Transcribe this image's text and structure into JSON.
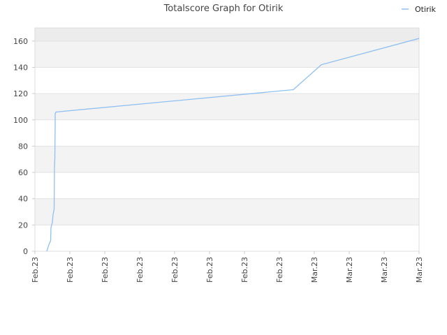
{
  "chart_data": {
    "type": "line",
    "title": "Totalscore Graph for Otirik",
    "xlabel": "",
    "ylabel": "",
    "ylim": [
      0,
      170
    ],
    "yticks": [
      0,
      20,
      40,
      60,
      80,
      100,
      120,
      140,
      160
    ],
    "xticks": [
      "Feb.23",
      "Feb.23",
      "Feb.23",
      "Feb.23",
      "Feb.23",
      "Feb.23",
      "Feb.23",
      "Feb.23",
      "Mar.23",
      "Mar.23",
      "Mar.23",
      "Mar.23"
    ],
    "grid": true,
    "legend_position": "top-right",
    "series": [
      {
        "name": "Otirik",
        "color": "#90c0f0",
        "x": [
          0.34,
          0.4,
          0.45,
          0.46,
          0.5,
          0.52,
          0.55,
          0.56,
          0.57,
          0.58,
          0.58,
          0.58,
          0.59,
          0.6,
          7.4,
          8.2,
          11.0
        ],
        "y": [
          0,
          5,
          8,
          18,
          22,
          28,
          32,
          65,
          70,
          95,
          100,
          105,
          105,
          106,
          123,
          142,
          162
        ]
      }
    ]
  }
}
